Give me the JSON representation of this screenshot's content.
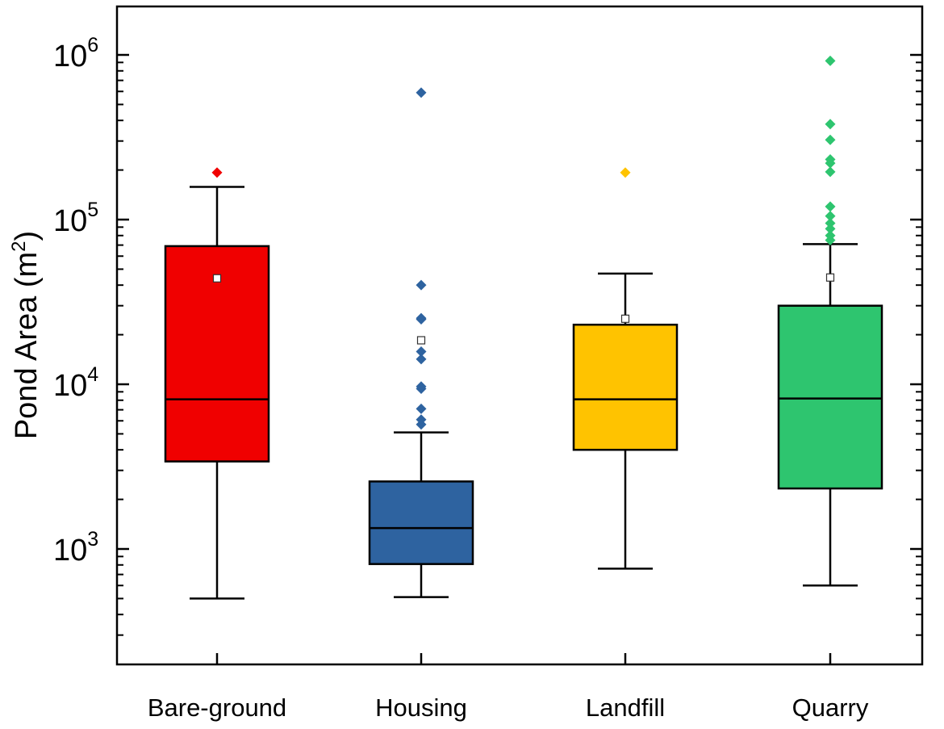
{
  "chart_data": {
    "type": "box",
    "title": "",
    "xlabel": "",
    "ylabel": {
      "text": "Pond Area (m",
      "sup": "2",
      "suffix": ")"
    },
    "yscale": "log",
    "ylim": [
      200,
      2000000
    ],
    "major_ticks": [
      {
        "value": 1000,
        "base": "10",
        "exp": "3"
      },
      {
        "value": 10000,
        "base": "10",
        "exp": "4"
      },
      {
        "value": 100000,
        "base": "10",
        "exp": "5"
      },
      {
        "value": 1000000,
        "base": "10",
        "exp": "6"
      }
    ],
    "grid": false,
    "categories": [
      "Bare-ground",
      "Housing",
      "Landfill",
      "Quarry"
    ],
    "series": [
      {
        "color": "#f00000",
        "whisker_low": 500,
        "q1": 3400,
        "median": 8100,
        "q3": 69000,
        "whisker_high": 158000,
        "mean": 44000,
        "outliers": [
          193000
        ]
      },
      {
        "color": "#2e63a0",
        "whisker_low": 510,
        "q1": 810,
        "median": 1340,
        "q3": 2570,
        "whisker_high": 5100,
        "mean": 18500,
        "outliers": [
          5700,
          6100,
          7100,
          9400,
          9700,
          14200,
          15800,
          24800,
          25200,
          40000,
          590000
        ]
      },
      {
        "color": "#ffc300",
        "whisker_low": 760,
        "q1": 4000,
        "median": 8100,
        "q3": 23000,
        "whisker_high": 47000,
        "mean": 25000,
        "outliers": [
          193000
        ]
      },
      {
        "color": "#2ec56f",
        "whisker_low": 600,
        "q1": 2330,
        "median": 8200,
        "q3": 30000,
        "whisker_high": 71000,
        "mean": 44500,
        "outliers": [
          75000,
          80000,
          88000,
          95000,
          105000,
          120000,
          195000,
          220000,
          232000,
          305000,
          380000,
          920000
        ]
      }
    ]
  }
}
